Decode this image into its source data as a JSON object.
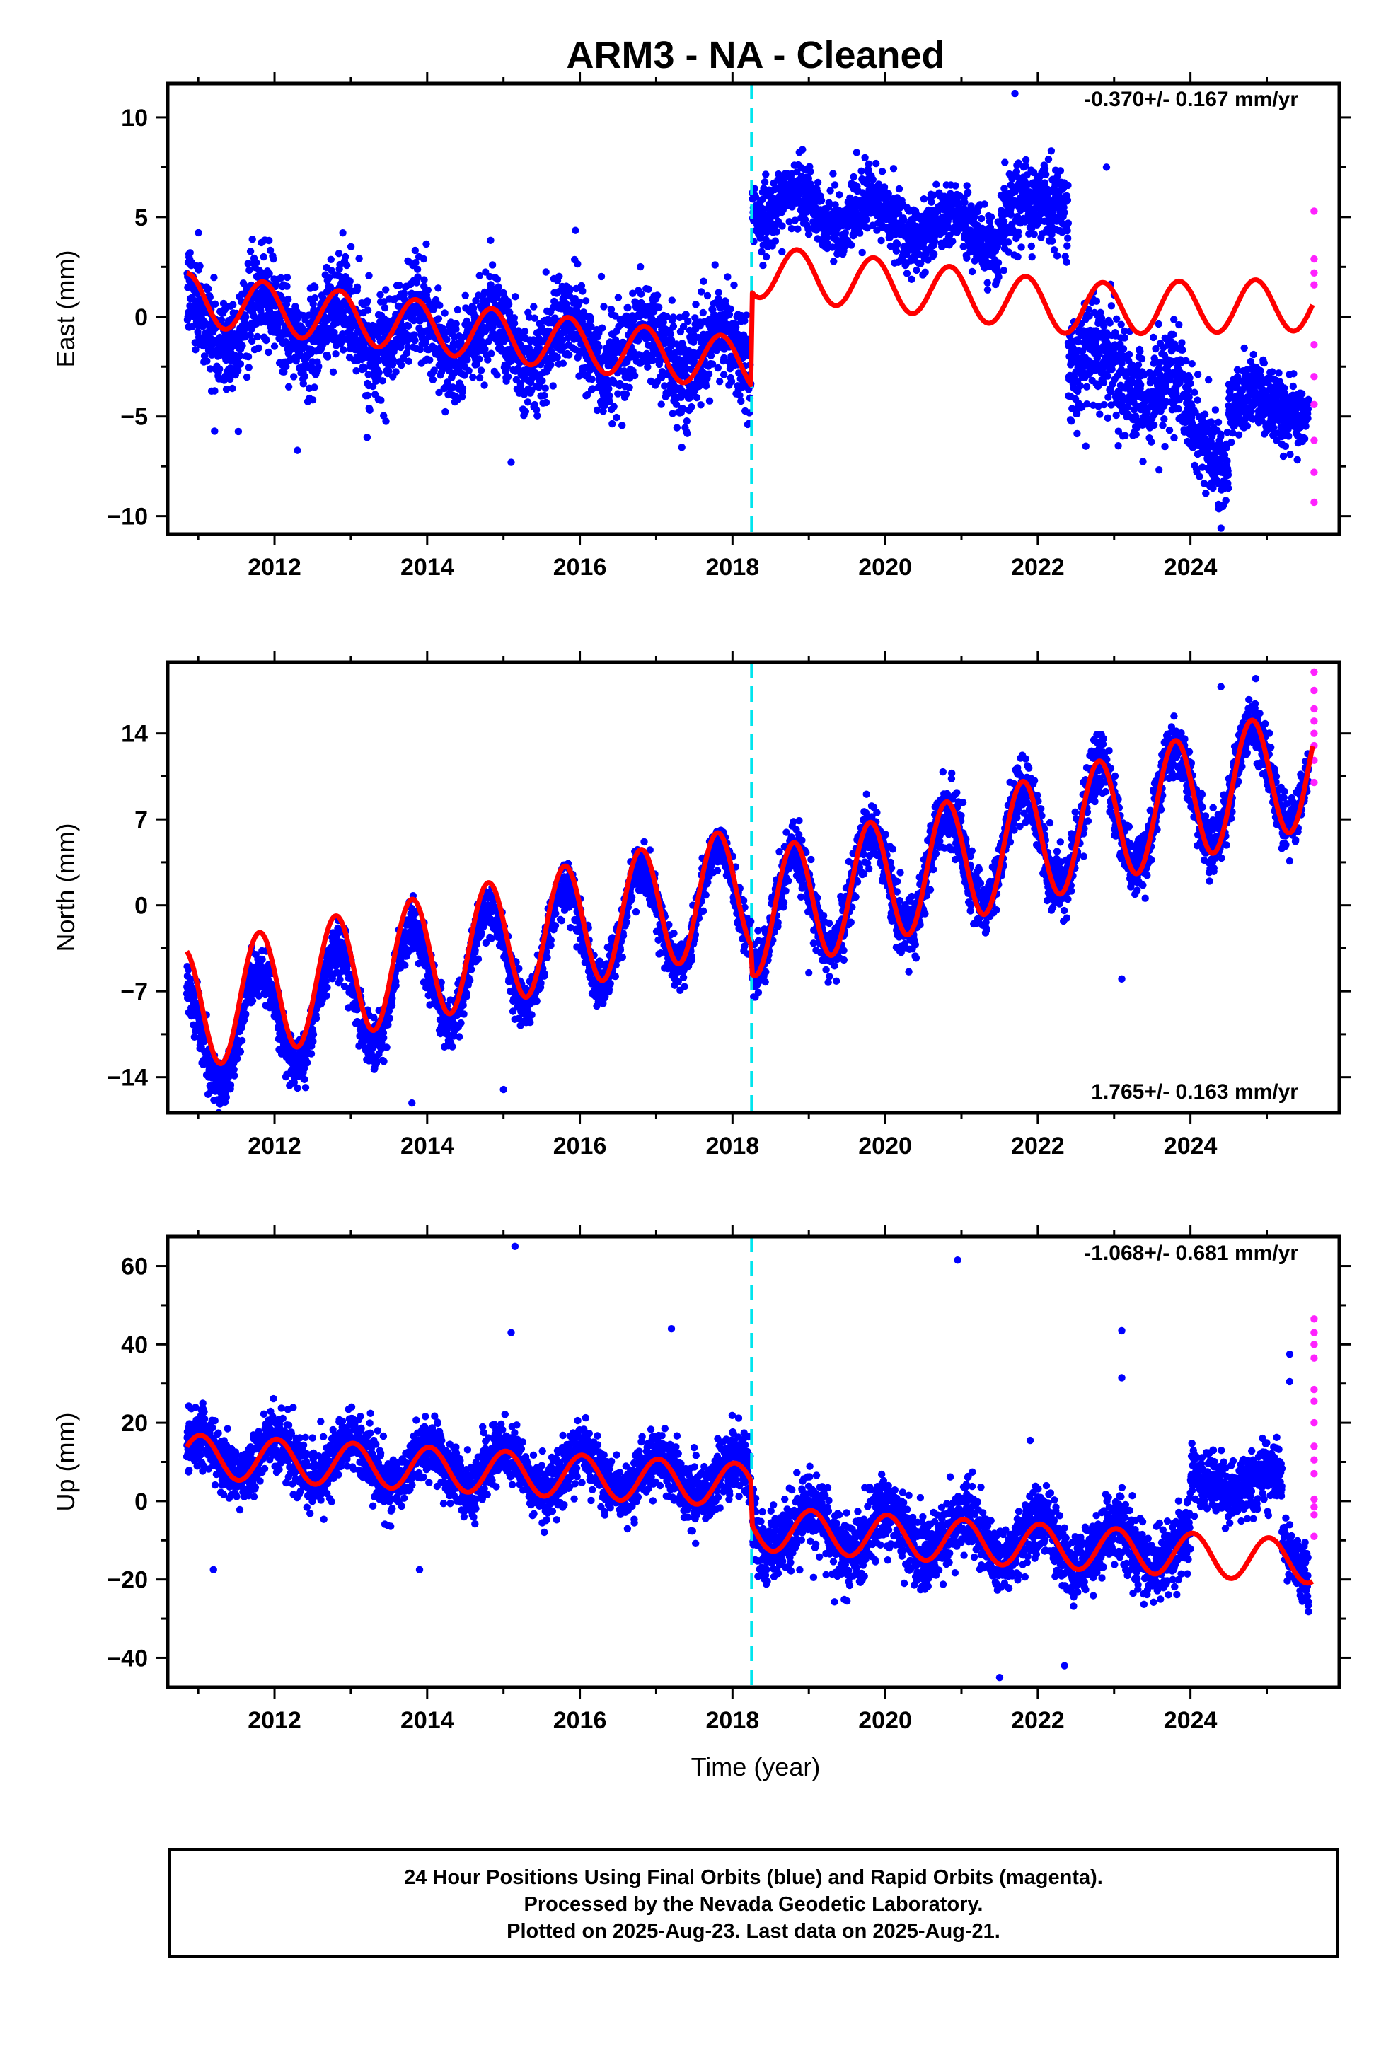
{
  "title": "ARM3  - NA - Cleaned",
  "colors": {
    "final_orbits": "#0000ff",
    "rapid_orbits": "#ff22ff",
    "model": "#ff0000",
    "offset_marker": "#00e5ee"
  },
  "chart_data": [
    {
      "type": "scatter",
      "panel": "east",
      "ylabel": "East (mm)",
      "xlabel": "",
      "rate_label": "-0.370+/- 0.167 mm/yr",
      "xlim": [
        2010.6,
        2025.95
      ],
      "ylim": [
        -10.9,
        11.7
      ],
      "x_ticks": [
        2012,
        2014,
        2016,
        2018,
        2020,
        2022,
        2024
      ],
      "y_ticks": [
        -10,
        -5,
        0,
        5,
        10
      ],
      "y_tick_labels": [
        "−10",
        "−5",
        "0",
        "5",
        "10"
      ],
      "offset_epoch": 2018.25,
      "final_orbit_segments": [
        {
          "x_start": 2010.85,
          "x_end": 2018.24,
          "center": [
            [
              2010.85,
              0.0
            ],
            [
              2018.24,
              -2.0
            ]
          ],
          "amplitude": 1.2,
          "spread": 1.6
        },
        {
          "x_start": 2018.26,
          "x_end": 2021.5,
          "center": [
            [
              2018.26,
              5.8
            ],
            [
              2021.5,
              4.2
            ]
          ],
          "amplitude": 0.8,
          "spread": 1.1
        },
        {
          "x_start": 2021.5,
          "x_end": 2022.4,
          "center": [
            [
              2021.5,
              5.2
            ],
            [
              2022.4,
              5.8
            ]
          ],
          "amplitude": 0.5,
          "spread": 1.3
        },
        {
          "x_start": 2022.4,
          "x_end": 2023.9,
          "center": [
            [
              2022.4,
              -2.0
            ],
            [
              2023.9,
              -4.0
            ]
          ],
          "amplitude": 1.0,
          "spread": 1.7
        },
        {
          "x_start": 2023.9,
          "x_end": 2024.5,
          "center": [
            [
              2023.9,
              -5.0
            ],
            [
              2024.5,
              -7.0
            ]
          ],
          "amplitude": 0.8,
          "spread": 1.4
        },
        {
          "x_start": 2024.5,
          "x_end": 2025.55,
          "center": [
            [
              2024.5,
              -4.2
            ],
            [
              2025.55,
              -4.6
            ]
          ],
          "amplitude": 0.5,
          "spread": 1.1
        }
      ],
      "outliers": [
        [
          2012.3,
          -6.7
        ],
        [
          2015.1,
          -7.3
        ],
        [
          2021.7,
          11.2
        ],
        [
          2022.9,
          7.5
        ],
        [
          2024.4,
          -10.6
        ],
        [
          2018.2,
          -5.4
        ]
      ],
      "rapid_orbit_points": [
        [
          2025.62,
          5.3
        ],
        [
          2025.62,
          2.9
        ],
        [
          2025.62,
          1.6
        ],
        [
          2025.62,
          -1.4
        ],
        [
          2025.62,
          -3.0
        ],
        [
          2025.62,
          -4.4
        ],
        [
          2025.62,
          -6.2
        ],
        [
          2025.62,
          -7.8
        ],
        [
          2025.62,
          -9.3
        ],
        [
          2025.62,
          2.2
        ]
      ],
      "model_knots": [
        [
          2010.85,
          0.9
        ],
        [
          2018.24,
          -2.4
        ],
        [
          2018.26,
          2.3
        ],
        [
          2020.5,
          1.4
        ],
        [
          2022.5,
          0.4
        ],
        [
          2025.6,
          0.6
        ]
      ],
      "model_annual_amplitude": 1.3,
      "model_annual_phase": 0.6
    },
    {
      "type": "scatter",
      "panel": "north",
      "ylabel": "North (mm)",
      "xlabel": "",
      "rate_label": "1.765+/- 0.163 mm/yr",
      "xlim": [
        2010.6,
        2025.95
      ],
      "ylim": [
        -16.9,
        19.8
      ],
      "x_ticks": [
        2012,
        2014,
        2016,
        2018,
        2020,
        2022,
        2024
      ],
      "y_ticks": [
        -14,
        -7,
        0,
        7,
        14
      ],
      "y_tick_labels": [
        "−14",
        "−7",
        "0",
        "7",
        "14"
      ],
      "offset_epoch": 2018.25,
      "final_orbit_segments": [
        {
          "x_start": 2010.85,
          "x_end": 2018.24,
          "center": [
            [
              2010.85,
              -11.0
            ],
            [
              2018.24,
              1.0
            ]
          ],
          "amplitude": 4.3,
          "spread": 1.3
        },
        {
          "x_start": 2018.26,
          "x_end": 2025.55,
          "center": [
            [
              2018.26,
              -1.0
            ],
            [
              2025.55,
              11.5
            ]
          ],
          "amplitude": 4.5,
          "spread": 1.6
        }
      ],
      "outliers": [
        [
          2013.8,
          -16.1
        ],
        [
          2015.0,
          -15.0
        ],
        [
          2019.0,
          -5.5
        ],
        [
          2023.1,
          -6.0
        ],
        [
          2024.4,
          17.8
        ]
      ],
      "rapid_orbit_points": [
        [
          2025.62,
          19.0
        ],
        [
          2025.62,
          17.5
        ],
        [
          2025.62,
          16.0
        ],
        [
          2025.62,
          15.0
        ],
        [
          2025.62,
          14.0
        ],
        [
          2025.62,
          13.0
        ],
        [
          2025.62,
          11.8
        ],
        [
          2025.62,
          10.0
        ]
      ],
      "model_knots": [
        [
          2010.85,
          -8.5
        ],
        [
          2018.24,
          1.5
        ],
        [
          2018.26,
          -0.8
        ],
        [
          2025.6,
          11.4
        ]
      ],
      "model_annual_amplitude": 5.0,
      "model_annual_phase": 0.55
    },
    {
      "type": "scatter",
      "panel": "up",
      "ylabel": "Up (mm)",
      "xlabel": "Time (year)",
      "rate_label": "-1.068+/- 0.681 mm/yr",
      "xlim": [
        2010.6,
        2025.95
      ],
      "ylim": [
        -47.5,
        67.5
      ],
      "x_ticks": [
        2012,
        2014,
        2016,
        2018,
        2020,
        2022,
        2024
      ],
      "y_ticks": [
        -40,
        -20,
        0,
        20,
        40,
        60
      ],
      "y_tick_labels": [
        "−40",
        "−20",
        "0",
        "20",
        "40",
        "60"
      ],
      "offset_epoch": 2018.25,
      "final_orbit_segments": [
        {
          "x_start": 2010.85,
          "x_end": 2018.24,
          "center": [
            [
              2010.85,
              12.0
            ],
            [
              2018.24,
              5.0
            ]
          ],
          "amplitude": 5.0,
          "spread": 5.0
        },
        {
          "x_start": 2018.26,
          "x_end": 2024.0,
          "center": [
            [
              2018.26,
              -6.0
            ],
            [
              2024.0,
              -13.0
            ]
          ],
          "amplitude": 5.5,
          "spread": 6.0
        },
        {
          "x_start": 2024.0,
          "x_end": 2025.2,
          "center": [
            [
              2024.0,
              4.0
            ],
            [
              2025.2,
              5.0
            ]
          ],
          "amplitude": 2.0,
          "spread": 5.0
        },
        {
          "x_start": 2025.2,
          "x_end": 2025.55,
          "center": [
            [
              2025.2,
              -10.0
            ],
            [
              2025.55,
              -18.0
            ]
          ],
          "amplitude": 1.0,
          "spread": 5.0
        }
      ],
      "outliers": [
        [
          2015.15,
          65.0
        ],
        [
          2015.1,
          43.0
        ],
        [
          2017.2,
          44.0
        ],
        [
          2020.95,
          61.5
        ],
        [
          2023.1,
          43.5
        ],
        [
          2023.1,
          31.5
        ],
        [
          2025.3,
          37.5
        ],
        [
          2025.3,
          30.5
        ],
        [
          2021.5,
          -45.0
        ],
        [
          2022.35,
          -42.0
        ],
        [
          2013.9,
          -17.5
        ],
        [
          2011.2,
          -17.5
        ],
        [
          2021.9,
          15.5
        ]
      ],
      "rapid_orbit_points": [
        [
          2025.62,
          46.5
        ],
        [
          2025.62,
          43.0
        ],
        [
          2025.62,
          40.0
        ],
        [
          2025.62,
          36.5
        ],
        [
          2025.62,
          28.5
        ],
        [
          2025.62,
          25.5
        ],
        [
          2025.62,
          20.0
        ],
        [
          2025.62,
          14.0
        ],
        [
          2025.62,
          10.5
        ],
        [
          2025.62,
          7.0
        ],
        [
          2025.62,
          0.5
        ],
        [
          2025.62,
          -1.5
        ],
        [
          2025.62,
          -3.5
        ],
        [
          2025.62,
          -9.0
        ]
      ],
      "model_knots": [
        [
          2010.85,
          11.5
        ],
        [
          2018.24,
          4.0
        ],
        [
          2018.26,
          -7.0
        ],
        [
          2025.6,
          -15.5
        ]
      ],
      "model_annual_amplitude": 5.5,
      "model_annual_phase": 0.78
    }
  ],
  "footer": {
    "line1": "24 Hour Positions Using Final Orbits (blue) and Rapid Orbits (magenta).",
    "line2": "Processed by the Nevada Geodetic Laboratory.",
    "line3": "Plotted on 2025-Aug-23. Last data on 2025-Aug-21."
  }
}
